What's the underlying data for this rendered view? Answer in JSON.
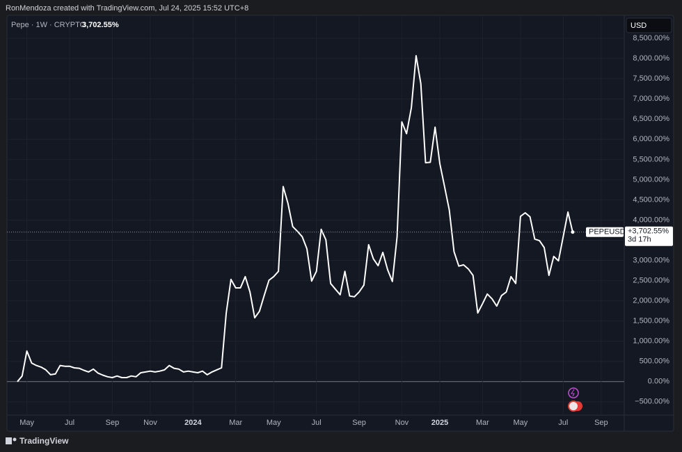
{
  "header": "RonMendoza created with TradingView.com, Jul 24, 2025 15:52 UTC+8",
  "footer": "TradingView",
  "chart_data": {
    "type": "line",
    "symbol": "Pepe · 1W · CRYPTO",
    "legend_value": "3,702.55%",
    "currency": "USD",
    "countdown": "3d 17h",
    "categories": [
      null,
      null,
      "May",
      null,
      null,
      null,
      null,
      null,
      null,
      null,
      null,
      "Jul",
      null,
      null,
      null,
      null,
      null,
      null,
      null,
      null,
      "Sep",
      null,
      null,
      null,
      null,
      null,
      null,
      null,
      "Nov",
      null,
      null,
      null,
      null,
      null,
      null,
      null,
      null,
      "2024",
      null,
      null,
      null,
      null,
      null,
      null,
      null,
      null,
      "Mar",
      null,
      null,
      null,
      null,
      null,
      null,
      null,
      "May",
      null,
      null,
      null,
      null,
      null,
      null,
      null,
      null,
      "Jul",
      null,
      null,
      null,
      null,
      null,
      null,
      null,
      null,
      "Sep",
      null,
      null,
      null,
      null,
      null,
      null,
      null,
      null,
      "Nov",
      null,
      null,
      null,
      null,
      null,
      null,
      null,
      "2025",
      null,
      null,
      null,
      null,
      null,
      null,
      null,
      null,
      "Mar",
      null,
      null,
      null,
      null,
      null,
      null,
      null,
      "May",
      null,
      null,
      null,
      null,
      null,
      null,
      null,
      null,
      "Jul",
      null,
      null,
      null,
      null,
      null,
      null,
      null,
      "Sep"
    ],
    "series": [
      {
        "name": "PEPEUSD",
        "color": "#ffffff",
        "values": [
          0,
          140,
          760,
          460,
          400,
          360,
          290,
          170,
          190,
          400,
          380,
          380,
          340,
          330,
          280,
          240,
          310,
          210,
          160,
          120,
          100,
          140,
          100,
          100,
          140,
          120,
          220,
          240,
          260,
          240,
          260,
          290,
          400,
          330,
          310,
          240,
          260,
          240,
          220,
          260,
          170,
          240,
          290,
          340,
          1700,
          2530,
          2320,
          2320,
          2600,
          2220,
          1580,
          1740,
          2130,
          2510,
          2600,
          2730,
          4830,
          4420,
          3840,
          3720,
          3590,
          3290,
          2490,
          2730,
          3770,
          3510,
          2430,
          2290,
          2150,
          2730,
          2120,
          2100,
          2220,
          2390,
          3390,
          3040,
          2870,
          3200,
          2770,
          2480,
          3590,
          6430,
          6140,
          6780,
          8070,
          7380,
          5420,
          5430,
          6300,
          5400,
          4830,
          4250,
          3220,
          2860,
          2890,
          2790,
          2630,
          1700,
          1930,
          2170,
          2050,
          1870,
          2130,
          2220,
          2600,
          2430,
          4090,
          4180,
          4080,
          3530,
          3490,
          3320,
          2630,
          3100,
          2990,
          3590,
          4200,
          3702.55,
          null,
          null,
          null,
          null,
          null,
          null
        ],
        "value_labels": [
          null,
          null,
          null,
          null,
          null,
          null,
          null,
          null,
          null,
          null,
          null,
          null,
          null,
          null,
          null,
          null,
          null,
          null,
          null,
          null,
          null,
          null,
          null,
          null,
          null,
          null,
          null,
          null,
          null,
          null,
          null,
          null,
          null,
          null,
          null,
          null,
          null,
          null,
          null,
          null,
          null,
          null,
          null,
          null,
          null,
          null,
          null,
          null,
          null,
          null,
          null,
          null,
          null,
          null,
          null,
          null,
          null,
          null,
          null,
          null,
          null,
          null,
          null,
          null,
          null,
          null,
          null,
          null,
          null,
          null,
          null,
          null,
          null,
          null,
          null,
          null,
          null,
          null,
          null,
          null,
          null,
          null,
          null,
          null,
          null,
          null,
          null,
          null,
          null,
          null,
          null,
          null,
          null,
          null,
          null,
          null,
          null,
          null,
          null,
          null,
          null,
          null,
          null,
          null,
          null,
          null,
          null,
          null,
          null,
          null,
          null,
          null,
          null,
          null,
          null,
          null,
          null,
          "+3,702.55%",
          null,
          null,
          null,
          null,
          null,
          null
        ]
      }
    ],
    "ylim": [
      -830,
      9070
    ],
    "yticks": [
      {
        "value": -500,
        "label": "−500.00%"
      },
      {
        "value": 0,
        "label": "0.00%"
      },
      {
        "value": 500,
        "label": "500.00%"
      },
      {
        "value": 1000,
        "label": "1,000.00%"
      },
      {
        "value": 1500,
        "label": "1,500.00%"
      },
      {
        "value": 2000,
        "label": "2,000.00%"
      },
      {
        "value": 2500,
        "label": "2,500.00%"
      },
      {
        "value": 3000,
        "label": "3,000.00%"
      },
      {
        "value": 3500,
        "label": "3,500.00%"
      },
      {
        "value": 4000,
        "label": "4,000.00%"
      },
      {
        "value": 4500,
        "label": "4,500.00%"
      },
      {
        "value": 5000,
        "label": "5,000.00%"
      },
      {
        "value": 5500,
        "label": "5,500.00%"
      },
      {
        "value": 6000,
        "label": "6,000.00%"
      },
      {
        "value": 6500,
        "label": "6,500.00%"
      },
      {
        "value": 7000,
        "label": "7,000.00%"
      },
      {
        "value": 7500,
        "label": "7,500.00%"
      },
      {
        "value": 8000,
        "label": "8,000.00%"
      },
      {
        "value": 8500,
        "label": "8,500.00%"
      }
    ],
    "grid": true
  }
}
